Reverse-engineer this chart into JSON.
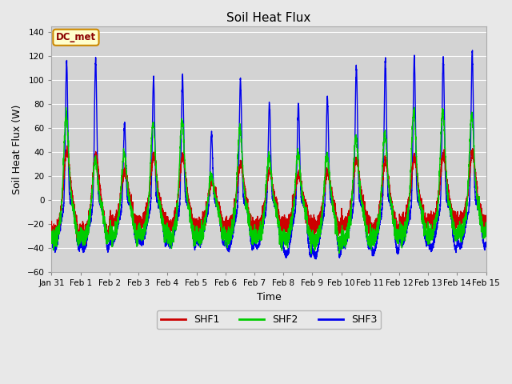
{
  "title": "Soil Heat Flux",
  "xlabel": "Time",
  "ylabel": "Soil Heat Flux (W)",
  "ylim": [
    -60,
    145
  ],
  "yticks": [
    -60,
    -40,
    -20,
    0,
    20,
    40,
    60,
    80,
    100,
    120,
    140
  ],
  "background_color": "#e8e8e8",
  "plot_bg_color": "#d3d3d3",
  "line_colors": {
    "SHF1": "#cc0000",
    "SHF2": "#00cc00",
    "SHF3": "#0000ee"
  },
  "line_width": 1.0,
  "legend_label": "DC_met",
  "legend_bg": "#ffffcc",
  "legend_border": "#cc8800",
  "n_days": 15,
  "points_per_day": 288,
  "shf3_peaks": [
    118,
    120,
    66,
    104,
    105,
    58,
    103,
    83,
    83,
    89,
    113,
    119,
    121,
    122,
    126
  ],
  "shf1_peaks": [
    44,
    40,
    27,
    39,
    39,
    18,
    33,
    27,
    24,
    25,
    35,
    35,
    37,
    40,
    41
  ],
  "shf2_peaks": [
    75,
    38,
    44,
    68,
    70,
    25,
    64,
    40,
    43,
    42,
    57,
    60,
    78,
    78,
    75
  ],
  "shf3_troughs": [
    -40,
    -40,
    -36,
    -36,
    -37,
    -36,
    -40,
    -38,
    -46,
    -46,
    -38,
    -43,
    -36,
    -40,
    -38
  ],
  "shf1_troughs": [
    -28,
    -28,
    -20,
    -18,
    -24,
    -23,
    -22,
    -22,
    -20,
    -22,
    -20,
    -25,
    -18,
    -18,
    -18
  ],
  "shf2_troughs": [
    -32,
    -32,
    -30,
    -28,
    -32,
    -30,
    -32,
    -32,
    -32,
    -36,
    -32,
    -33,
    -28,
    -28,
    -28
  ]
}
